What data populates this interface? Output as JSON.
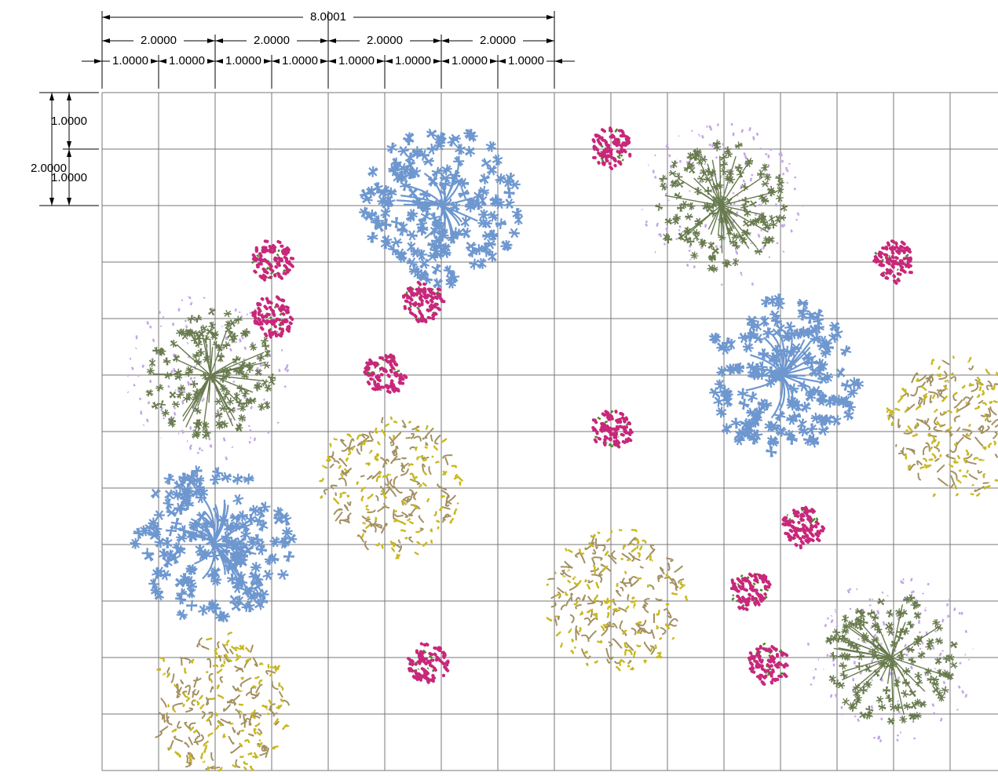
{
  "dimensions": {
    "total": "8.0001",
    "halves": [
      "2.0000",
      "2.0000",
      "2.0000",
      "2.0000"
    ],
    "units": [
      "1.0000",
      "1.0000",
      "1.0000",
      "1.0000",
      "1.0000",
      "1.0000",
      "1.0000",
      "1.0000"
    ],
    "left": {
      "total": "2.0000",
      "units": [
        "1.0000",
        "1.0000"
      ]
    }
  }
}
